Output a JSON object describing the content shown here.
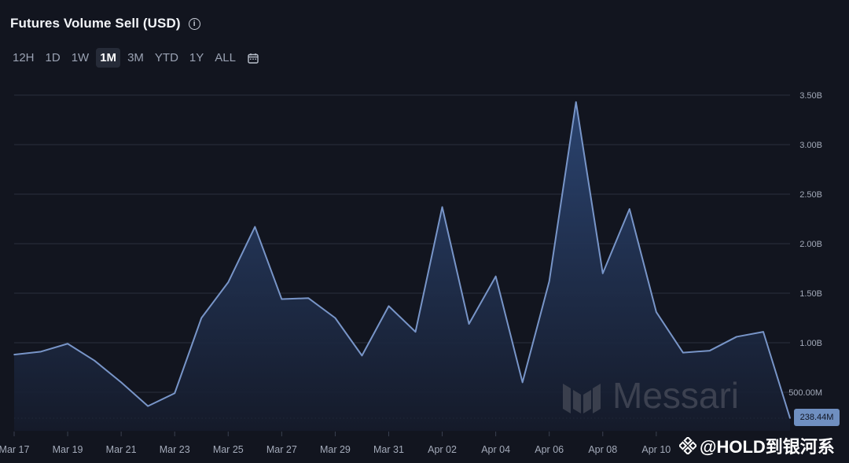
{
  "header": {
    "title": "Futures Volume Sell (USD)",
    "info_icon": "info-icon"
  },
  "ranges": [
    "12H",
    "1D",
    "1W",
    "1M",
    "3M",
    "YTD",
    "1Y",
    "ALL"
  ],
  "active_range": "1M",
  "calendar_icon": "calendar-icon",
  "watermark": "Messari",
  "credit": "@HOLD到银河系",
  "last_value_label": "238.44M",
  "colors": {
    "line": "#7895c8",
    "fill_top": "#2a4370",
    "fill_bottom": "#141a2a",
    "grid": "#2a2f3c",
    "tag": "#6f8fc0"
  },
  "chart_data": {
    "type": "area",
    "title": "Futures Volume Sell (USD)",
    "y_unit": "USD",
    "ylim": [
      0,
      3.6
    ],
    "y_scale_label": "B",
    "yticks": [
      0.5,
      1.0,
      1.5,
      2.0,
      2.5,
      3.0,
      3.5
    ],
    "ytick_labels": [
      "500.00M",
      "1.00B",
      "1.50B",
      "2.00B",
      "2.50B",
      "3.00B",
      "3.50B"
    ],
    "xtick_labels": [
      "Mar 17",
      "Mar 19",
      "Mar 21",
      "Mar 23",
      "Mar 25",
      "Mar 27",
      "Mar 29",
      "Mar 31",
      "Apr 02",
      "Apr 04",
      "Apr 06",
      "Apr 08",
      "Apr 10"
    ],
    "x": [
      "Mar 17",
      "Mar 18",
      "Mar 19",
      "Mar 20",
      "Mar 21",
      "Mar 22",
      "Mar 23",
      "Mar 24",
      "Mar 25",
      "Mar 26",
      "Mar 27",
      "Mar 28",
      "Mar 29",
      "Mar 30",
      "Mar 31",
      "Apr 01",
      "Apr 02",
      "Apr 03",
      "Apr 04",
      "Apr 05",
      "Apr 06",
      "Apr 07",
      "Apr 08",
      "Apr 09",
      "Apr 10",
      "Apr 11",
      "Apr 12",
      "Apr 13",
      "Apr 14",
      "Apr 15"
    ],
    "values": [
      0.88,
      0.91,
      0.99,
      0.82,
      0.6,
      0.36,
      0.49,
      1.25,
      1.61,
      2.17,
      1.44,
      1.45,
      1.25,
      0.87,
      1.37,
      1.11,
      2.37,
      1.19,
      1.67,
      0.6,
      1.62,
      3.43,
      1.7,
      2.35,
      1.31,
      0.9,
      0.92,
      1.06,
      1.11,
      0.238
    ],
    "last_value": 0.23844,
    "grid": true
  }
}
